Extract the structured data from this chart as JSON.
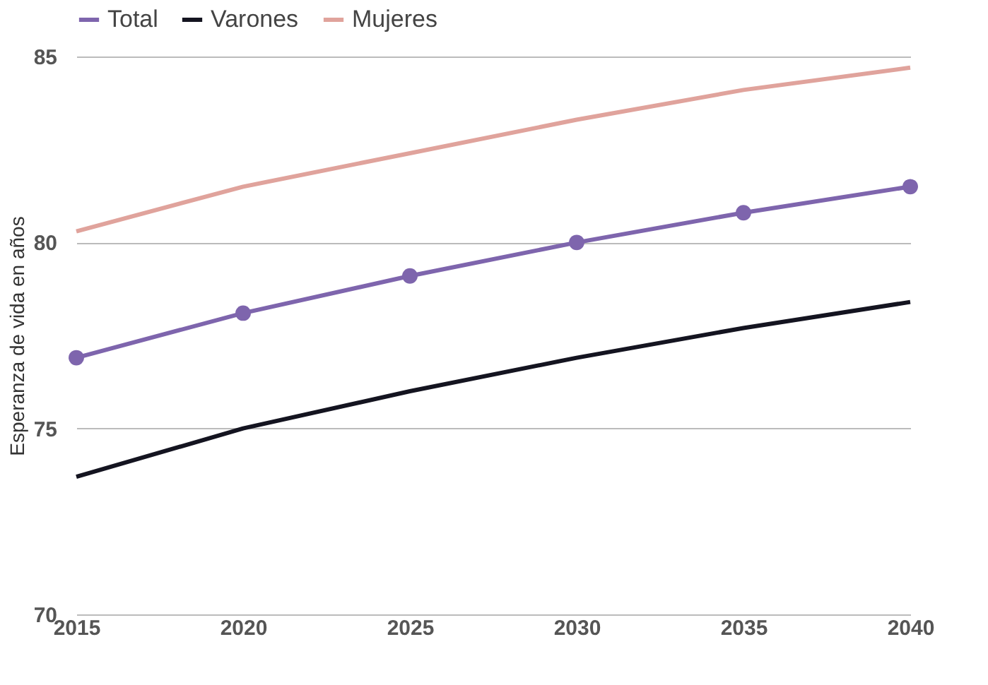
{
  "chart_data": {
    "type": "line",
    "ylabel": "Esperanza de vida en años",
    "x": [
      2015,
      2020,
      2025,
      2030,
      2035,
      2040
    ],
    "series": [
      {
        "name": "Total",
        "color": "#7e65ad",
        "marker": "circle",
        "values": [
          76.9,
          78.1,
          79.1,
          80.0,
          80.8,
          81.5
        ]
      },
      {
        "name": "Varones",
        "color": "#141420",
        "marker": "none",
        "values": [
          73.7,
          75.0,
          76.0,
          76.9,
          77.7,
          78.4
        ]
      },
      {
        "name": "Mujeres",
        "color": "#e0a39c",
        "marker": "none",
        "values": [
          80.3,
          81.5,
          82.4,
          83.3,
          84.1,
          84.7
        ]
      }
    ],
    "xlim": [
      2015,
      2040
    ],
    "xticks": [
      2015,
      2020,
      2025,
      2030,
      2035,
      2040
    ],
    "ylim": [
      70,
      85
    ],
    "yticks": [
      70,
      75,
      80,
      85
    ],
    "grid": "y",
    "legend": "top",
    "line_style": "solid"
  }
}
